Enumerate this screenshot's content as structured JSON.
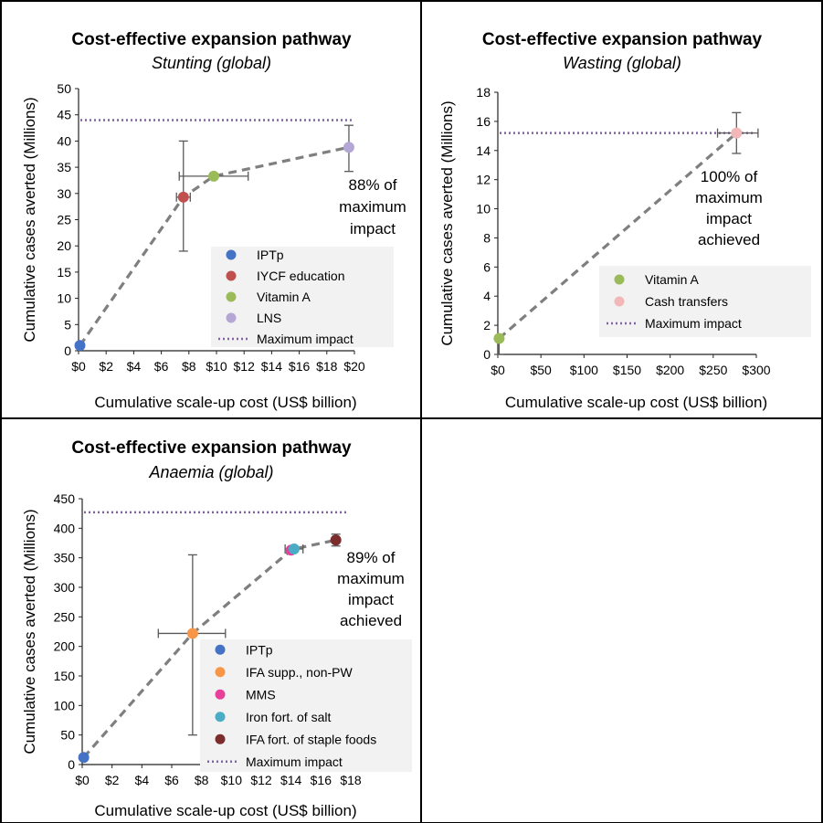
{
  "chart_data": [
    {
      "type": "line",
      "title": "Cost-effective expansion pathway",
      "subtitle": "Stunting (global)",
      "xlabel": "Cumulative scale-up cost (US$ billion)",
      "ylabel": "Cumulative cases averted (Millions)",
      "xlim": [
        0,
        20
      ],
      "ylim": [
        0,
        50
      ],
      "xticks": [
        0,
        2,
        4,
        6,
        8,
        10,
        12,
        14,
        16,
        18,
        20
      ],
      "xtick_labels": [
        "$0",
        "$2",
        "$4",
        "$6",
        "$8",
        "$10",
        "$12",
        "$14",
        "$16",
        "$18",
        "$20"
      ],
      "yticks": [
        0,
        5,
        10,
        15,
        20,
        25,
        30,
        35,
        40,
        45,
        50
      ],
      "ytick_labels": [
        "0",
        "5",
        "10",
        "15",
        "20",
        "25",
        "30",
        "35",
        "40",
        "45",
        "50"
      ],
      "max_impact": 44,
      "series": [
        {
          "name": "IPTp",
          "color": "#4472c4",
          "x": 0.1,
          "y": 1,
          "xerr": null,
          "yerr": null
        },
        {
          "name": "IYCF education",
          "color": "#c0504d",
          "x": 7.6,
          "y": 29.3,
          "xerr": [
            7.1,
            8.1
          ],
          "yerr": [
            19,
            40
          ]
        },
        {
          "name": "Vitamin A",
          "color": "#9bbb59",
          "x": 9.8,
          "y": 33.3,
          "xerr": [
            7.3,
            12.3
          ],
          "yerr": null
        },
        {
          "name": "LNS",
          "color": "#b4a7d6",
          "x": 19.6,
          "y": 38.8,
          "xerr": null,
          "yerr": [
            34.2,
            43
          ]
        }
      ],
      "max_impact_label": "Maximum impact",
      "max_impact_color": "#8064a2",
      "annotation": [
        "88% of",
        "maximum",
        "impact"
      ],
      "legend_placement": "bottom-right"
    },
    {
      "type": "line",
      "title": "Cost-effective expansion pathway",
      "subtitle": "Wasting (global)",
      "xlabel": "Cumulative scale-up cost (US$ billion)",
      "ylabel": "Cumulative cases averted (Millions)",
      "xlim": [
        0,
        300
      ],
      "ylim": [
        0,
        18
      ],
      "xticks": [
        0,
        50,
        100,
        150,
        200,
        250,
        300
      ],
      "xtick_labels": [
        "$0",
        "$50",
        "$100",
        "$150",
        "$200",
        "$250",
        "$300"
      ],
      "yticks": [
        0,
        2,
        4,
        6,
        8,
        10,
        12,
        14,
        16,
        18
      ],
      "ytick_labels": [
        "0",
        "2",
        "4",
        "6",
        "8",
        "10",
        "12",
        "14",
        "16",
        "18"
      ],
      "max_impact": 15.2,
      "series": [
        {
          "name": "Vitamin A",
          "color": "#9bbb59",
          "x": 1.5,
          "y": 1.1,
          "xerr": null,
          "yerr": [
            0,
            1.1
          ]
        },
        {
          "name": "Cash transfers",
          "color": "#f2b8b8",
          "x": 277,
          "y": 15.2,
          "xerr": [
            255,
            302
          ],
          "yerr": [
            13.8,
            16.6
          ]
        }
      ],
      "max_impact_label": "Maximum impact",
      "max_impact_color": "#8064a2",
      "annotation": [
        "100% of",
        "maximum",
        "impact",
        "achieved"
      ],
      "legend_placement": "bottom-right"
    },
    {
      "type": "line",
      "title": "Cost-effective expansion pathway",
      "subtitle": "Anaemia (global)",
      "xlabel": "Cumulative scale-up cost (US$ billion)",
      "ylabel": "Cumulative cases averted (Millions)",
      "xlim": [
        0,
        18
      ],
      "ylim": [
        0,
        450
      ],
      "xticks": [
        0,
        2,
        4,
        6,
        8,
        10,
        12,
        14,
        16,
        18
      ],
      "xtick_labels": [
        "$0",
        "$2",
        "$4",
        "$6",
        "$8",
        "$10",
        "$12",
        "$14",
        "$16",
        "$18"
      ],
      "yticks": [
        0,
        50,
        100,
        150,
        200,
        250,
        300,
        350,
        400,
        450
      ],
      "ytick_labels": [
        "0",
        "50",
        "100",
        "150",
        "200",
        "250",
        "300",
        "350",
        "400",
        "450"
      ],
      "max_impact": 427,
      "series": [
        {
          "name": "IPTp",
          "color": "#4472c4",
          "x": 0.1,
          "y": 12,
          "xerr": null,
          "yerr": null
        },
        {
          "name": "IFA supp., non-PW",
          "color": "#f79646",
          "x": 7.4,
          "y": 222,
          "xerr": [
            5.1,
            9.6
          ],
          "yerr": [
            50,
            355
          ]
        },
        {
          "name": "MMS",
          "color": "#e8409a",
          "x": 14,
          "y": 363,
          "xerr": null,
          "yerr": null
        },
        {
          "name": "Iron fort. of salt",
          "color": "#4bacc6",
          "x": 14.2,
          "y": 365,
          "xerr": [
            13.6,
            14.8
          ],
          "yerr": null
        },
        {
          "name": "IFA fort. of staple foods",
          "color": "#7b2c2c",
          "x": 17,
          "y": 380,
          "xerr": null,
          "yerr": [
            370,
            390
          ]
        }
      ],
      "max_impact_label": "Maximum impact",
      "max_impact_color": "#8064a2",
      "annotation": [
        "89% of",
        "maximum",
        "impact",
        "achieved"
      ],
      "legend_placement": "bottom-right"
    }
  ]
}
